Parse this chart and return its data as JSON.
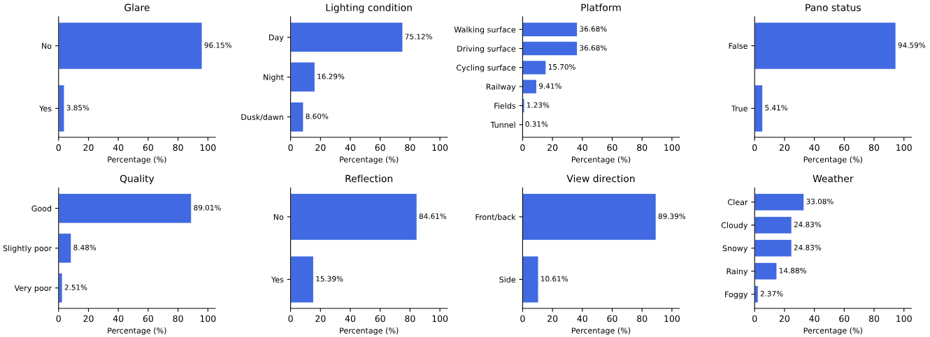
{
  "chart_data": [
    {
      "type": "bar",
      "orientation": "horizontal",
      "title": "Glare",
      "xlabel": "Percentage (%)",
      "categories": [
        "No",
        "Yes"
      ],
      "values": [
        96.15,
        3.85
      ],
      "value_labels": [
        "96.15%",
        "3.85%"
      ],
      "color": "#4169e1",
      "xlim": [
        0,
        105
      ],
      "xticks": [
        0,
        20,
        40,
        60,
        80,
        100
      ],
      "grid": false,
      "legend": false
    },
    {
      "type": "bar",
      "orientation": "horizontal",
      "title": "Lighting condition",
      "xlabel": "Percentage (%)",
      "categories": [
        "Day",
        "Night",
        "Dusk/dawn"
      ],
      "values": [
        75.12,
        16.29,
        8.6
      ],
      "value_labels": [
        "75.12%",
        "16.29%",
        "8.60%"
      ],
      "color": "#4169e1",
      "xlim": [
        0,
        105
      ],
      "xticks": [
        0,
        20,
        40,
        60,
        80,
        100
      ],
      "grid": false,
      "legend": false
    },
    {
      "type": "bar",
      "orientation": "horizontal",
      "title": "Platform",
      "xlabel": "Percentage (%)",
      "categories": [
        "Walking surface",
        "Driving surface",
        "Cycling surface",
        "Railway",
        "Fields",
        "Tunnel"
      ],
      "values": [
        36.68,
        36.68,
        15.7,
        9.41,
        1.23,
        0.31
      ],
      "value_labels": [
        "36.68%",
        "36.68%",
        "15.70%",
        "9.41%",
        "1.23%",
        "0.31%"
      ],
      "color": "#4169e1",
      "xlim": [
        0,
        105
      ],
      "xticks": [
        0,
        20,
        40,
        60,
        80,
        100
      ],
      "grid": false,
      "legend": false
    },
    {
      "type": "bar",
      "orientation": "horizontal",
      "title": "Pano status",
      "xlabel": "Percentage (%)",
      "categories": [
        "False",
        "True"
      ],
      "values": [
        94.59,
        5.41
      ],
      "value_labels": [
        "94.59%",
        "5.41%"
      ],
      "color": "#4169e1",
      "xlim": [
        0,
        105
      ],
      "xticks": [
        0,
        20,
        40,
        60,
        80,
        100
      ],
      "grid": false,
      "legend": false
    },
    {
      "type": "bar",
      "orientation": "horizontal",
      "title": "Quality",
      "xlabel": "Percentage (%)",
      "categories": [
        "Good",
        "Slightly poor",
        "Very poor"
      ],
      "values": [
        89.01,
        8.48,
        2.51
      ],
      "value_labels": [
        "89.01%",
        "8.48%",
        "2.51%"
      ],
      "color": "#4169e1",
      "xlim": [
        0,
        105
      ],
      "xticks": [
        0,
        20,
        40,
        60,
        80,
        100
      ],
      "grid": false,
      "legend": false
    },
    {
      "type": "bar",
      "orientation": "horizontal",
      "title": "Reflection",
      "xlabel": "Percentage (%)",
      "categories": [
        "No",
        "Yes"
      ],
      "values": [
        84.61,
        15.39
      ],
      "value_labels": [
        "84.61%",
        "15.39%"
      ],
      "color": "#4169e1",
      "xlim": [
        0,
        105
      ],
      "xticks": [
        0,
        20,
        40,
        60,
        80,
        100
      ],
      "grid": false,
      "legend": false
    },
    {
      "type": "bar",
      "orientation": "horizontal",
      "title": "View direction",
      "xlabel": "Percentage (%)",
      "categories": [
        "Front/back",
        "Side"
      ],
      "values": [
        89.39,
        10.61
      ],
      "value_labels": [
        "89.39%",
        "10.61%"
      ],
      "color": "#4169e1",
      "xlim": [
        0,
        105
      ],
      "xticks": [
        0,
        20,
        40,
        60,
        80,
        100
      ],
      "grid": false,
      "legend": false
    },
    {
      "type": "bar",
      "orientation": "horizontal",
      "title": "Weather",
      "xlabel": "Percentage (%)",
      "categories": [
        "Clear",
        "Cloudy",
        "Snowy",
        "Rainy",
        "Foggy"
      ],
      "values": [
        33.08,
        24.83,
        24.83,
        14.88,
        2.37
      ],
      "value_labels": [
        "33.08%",
        "24.83%",
        "24.83%",
        "14.88%",
        "2.37%"
      ],
      "color": "#4169e1",
      "xlim": [
        0,
        105
      ],
      "xticks": [
        0,
        20,
        40,
        60,
        80,
        100
      ],
      "grid": false,
      "legend": false
    }
  ]
}
